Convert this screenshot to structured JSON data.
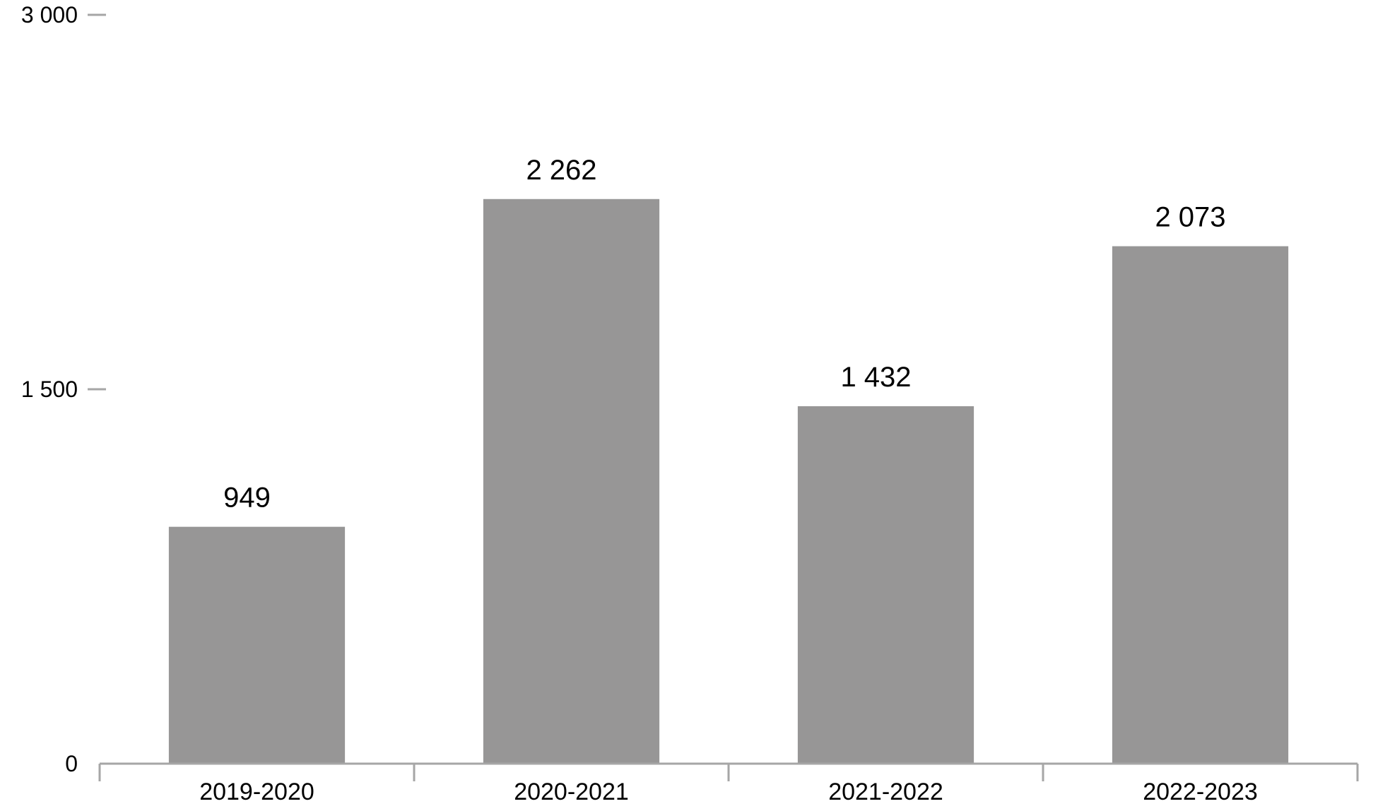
{
  "chart_data": {
    "type": "bar",
    "categories": [
      "2019-2020",
      "2020-2021",
      "2021-2022",
      "2022-2023"
    ],
    "values": [
      949,
      2262,
      1432,
      2073
    ],
    "data_labels": [
      "949",
      "2 262",
      "1 432",
      "2 073"
    ],
    "yticks": [
      0,
      1500,
      3000
    ],
    "ytick_labels": [
      "0",
      "1 500",
      "3 000"
    ],
    "ylim": [
      0,
      3000
    ],
    "title": "",
    "xlabel": "",
    "ylabel": "",
    "grid": false,
    "legend": "none",
    "colors": {
      "bar": "#979696",
      "axis": "#a6a6a6",
      "text": "#000000"
    }
  }
}
